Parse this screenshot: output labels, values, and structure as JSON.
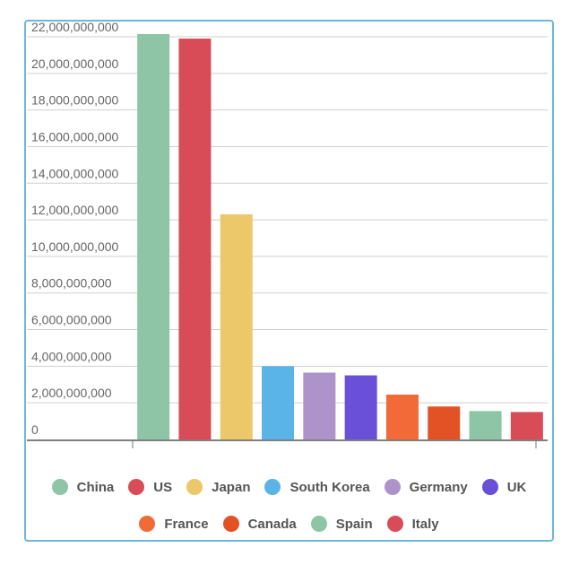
{
  "chart_data": {
    "type": "bar",
    "categories": [
      "China",
      "US",
      "Japan",
      "South Korea",
      "Germany",
      "UK",
      "France",
      "Canada",
      "Spain",
      "Italy"
    ],
    "values": [
      22150000000,
      21900000000,
      12300000000,
      4000000000,
      3650000000,
      3500000000,
      2450000000,
      1800000000,
      1550000000,
      1500000000
    ],
    "colors": [
      "#8dc5a6",
      "#d84c57",
      "#ecc86a",
      "#5ab4e5",
      "#ad93ca",
      "#6a4fd8",
      "#f16a37",
      "#e25224",
      "#8dc5a6",
      "#d84c57"
    ],
    "ylim": [
      0,
      22000000000
    ],
    "yticks": [
      "0",
      "2,000,000,000",
      "4,000,000,000",
      "6,000,000,000",
      "8,000,000,000",
      "10,000,000,000",
      "12,000,000,000",
      "14,000,000,000",
      "16,000,000,000",
      "18,000,000,000",
      "20,000,000,000",
      "22,000,000,000"
    ],
    "ytick_values": [
      0,
      2000000000,
      4000000000,
      6000000000,
      8000000000,
      10000000000,
      12000000000,
      14000000000,
      16000000000,
      18000000000,
      20000000000,
      22000000000
    ],
    "grid": true,
    "legend_position": "bottom",
    "title": "",
    "xlabel": "",
    "ylabel": ""
  },
  "legend": {
    "row1": [
      {
        "label": "China",
        "color": "#8dc5a6"
      },
      {
        "label": "US",
        "color": "#d84c57"
      },
      {
        "label": "Japan",
        "color": "#ecc86a"
      },
      {
        "label": "South Korea",
        "color": "#5ab4e5"
      },
      {
        "label": "Germany",
        "color": "#ad93ca"
      },
      {
        "label": "UK",
        "color": "#6a4fd8"
      }
    ],
    "row2": [
      {
        "label": "France",
        "color": "#f16a37"
      },
      {
        "label": "Canada",
        "color": "#e25224"
      },
      {
        "label": "Spain",
        "color": "#8dc5a6"
      },
      {
        "label": "Italy",
        "color": "#d84c57"
      }
    ]
  }
}
